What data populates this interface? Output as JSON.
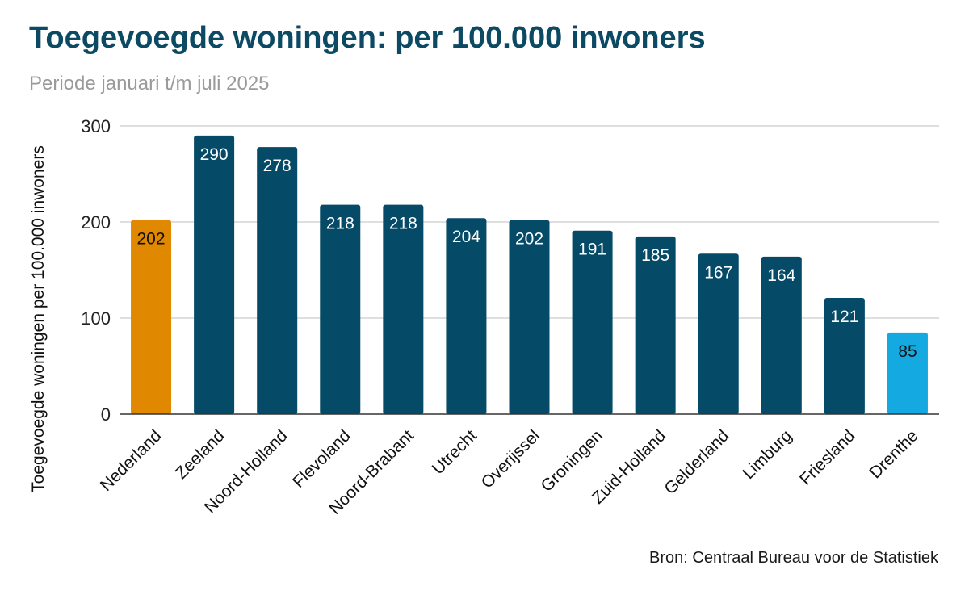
{
  "header": {
    "title": "Toegevoegde woningen: per 100.000 inwoners",
    "subtitle": "Periode januari t/m juli 2025"
  },
  "footer": {
    "source": "Bron: Centraal Bureau voor de Statistiek"
  },
  "colors": {
    "default_bar": "#054a66",
    "highlight_national": "#e08800",
    "highlight_lowest": "#14a9e0",
    "title": "#0c4a63",
    "grid": "#cccccc"
  },
  "chart_data": {
    "type": "bar",
    "title": "Toegevoegde woningen: per 100.000 inwoners",
    "subtitle": "Periode januari t/m juli 2025",
    "xlabel": "",
    "ylabel": "Toegevoegde woningen per 100.000 inwoners",
    "ylim": [
      0,
      300
    ],
    "yticks": [
      0,
      100,
      200,
      300
    ],
    "grid": true,
    "legend": "none",
    "categories": [
      "Nederland",
      "Zeeland",
      "Noord-Holland",
      "Flevoland",
      "Noord-Brabant",
      "Utrecht",
      "Overijssel",
      "Groningen",
      "Zuid-Holland",
      "Gelderland",
      "Limburg",
      "Friesland",
      "Drenthe"
    ],
    "values": [
      202,
      290,
      278,
      218,
      218,
      204,
      202,
      191,
      185,
      167,
      164,
      121,
      85
    ],
    "bar_colors": [
      "#e08800",
      "#054a66",
      "#054a66",
      "#054a66",
      "#054a66",
      "#054a66",
      "#054a66",
      "#054a66",
      "#054a66",
      "#054a66",
      "#054a66",
      "#054a66",
      "#14a9e0"
    ],
    "label_colors": [
      "#111111",
      "#ffffff",
      "#ffffff",
      "#ffffff",
      "#ffffff",
      "#ffffff",
      "#ffffff",
      "#ffffff",
      "#ffffff",
      "#ffffff",
      "#ffffff",
      "#ffffff",
      "#111111"
    ]
  }
}
